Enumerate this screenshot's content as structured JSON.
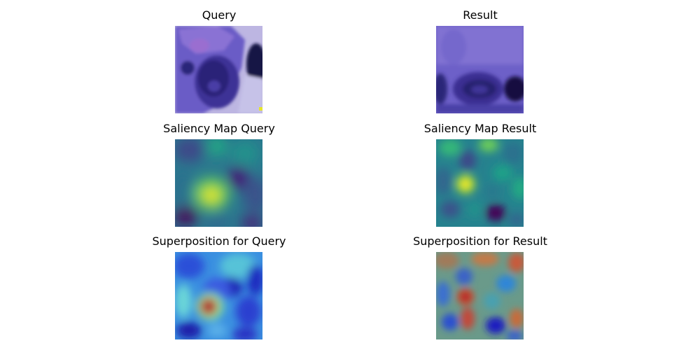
{
  "panels": {
    "query_image": {
      "title": "Query"
    },
    "result_image": {
      "title": "Result"
    },
    "query_saliency": {
      "title": "Saliency Map Query"
    },
    "result_saliency": {
      "title": "Saliency Map Result"
    },
    "query_superposition": {
      "title": "Superposition for Query"
    },
    "result_superposition": {
      "title": "Superposition for Result"
    }
  },
  "colors": {
    "stain_background": "#b9b2dc",
    "stain_cell": "#4b3f9e",
    "stain_nucleus": "#1f1a60",
    "viridis_low": "#440154",
    "viridis_mid": "#21918c",
    "viridis_high": "#fde725",
    "jet_low": "#1a1aff",
    "jet_high": "#c81e1e"
  }
}
